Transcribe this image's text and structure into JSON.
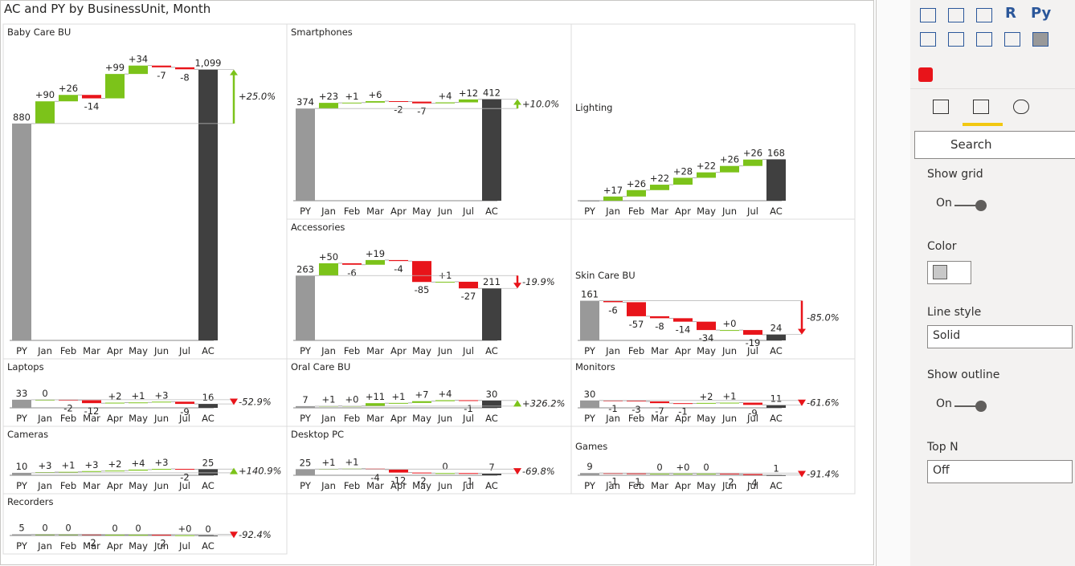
{
  "title": "AC and PY by BusinessUnit, Month",
  "colors": {
    "base": "#999999",
    "increase": "#7cc31a",
    "decrease": "#e8141a",
    "total": "#404040"
  },
  "chart_data": [
    {
      "type": "waterfall",
      "title": "Baby Care BU",
      "categories": [
        "PY",
        "Jan",
        "Feb",
        "Mar",
        "Apr",
        "May",
        "Jun",
        "Jul",
        "AC"
      ],
      "values": [
        880,
        90,
        26,
        -14,
        99,
        34,
        -7,
        -8,
        1099
      ],
      "value_labels": [
        "880",
        "+90",
        "+26",
        "-14",
        "+99",
        "+34",
        "-7",
        "-8",
        "1,099"
      ],
      "variance": {
        "value": 25.0,
        "label": "+25.0%"
      }
    },
    {
      "type": "waterfall",
      "title": "Smartphones",
      "categories": [
        "PY",
        "Jan",
        "Feb",
        "Mar",
        "Apr",
        "May",
        "Jun",
        "Jul",
        "AC"
      ],
      "values": [
        374,
        23,
        1,
        6,
        -2,
        -7,
        4,
        12,
        412
      ],
      "value_labels": [
        "374",
        "+23",
        "+1",
        "+6",
        "-2",
        "-7",
        "+4",
        "+12",
        "412"
      ],
      "variance": {
        "value": 10.0,
        "label": "+10.0%"
      }
    },
    {
      "type": "waterfall",
      "title": "Lighting",
      "categories": [
        "PY",
        "Jan",
        "Feb",
        "Mar",
        "Apr",
        "May",
        "Jun",
        "Jul",
        "AC"
      ],
      "values": [
        0,
        17,
        26,
        22,
        28,
        22,
        26,
        26,
        168
      ],
      "value_labels": [
        null,
        "+17",
        "+26",
        "+22",
        "+28",
        "+22",
        "+26",
        "+26",
        "168"
      ]
    },
    {
      "type": "waterfall",
      "title": "Accessories",
      "categories": [
        "PY",
        "Jan",
        "Feb",
        "Mar",
        "Apr",
        "May",
        "Jun",
        "Jul",
        "AC"
      ],
      "values": [
        263,
        50,
        -6,
        19,
        -4,
        -85,
        1,
        -27,
        211
      ],
      "value_labels": [
        "263",
        "+50",
        "-6",
        "+19",
        "-4",
        "-85",
        "+1",
        "-27",
        "211"
      ],
      "variance": {
        "value": -19.9,
        "label": "-19.9%"
      }
    },
    {
      "type": "waterfall",
      "title": "Skin Care BU",
      "categories": [
        "PY",
        "Jan",
        "Feb",
        "Mar",
        "Apr",
        "May",
        "Jun",
        "Jul",
        "AC"
      ],
      "values": [
        161,
        -6,
        -57,
        -8,
        -14,
        -34,
        0,
        -19,
        24
      ],
      "value_labels": [
        "161",
        "-6",
        "-57",
        "-8",
        "-14",
        "-34",
        "+0",
        "-19",
        "24"
      ],
      "variance": {
        "value": -85.0,
        "label": "-85.0%"
      }
    },
    {
      "type": "waterfall",
      "title": "Laptops",
      "categories": [
        "PY",
        "Jan",
        "Feb",
        "Mar",
        "Apr",
        "May",
        "Jun",
        "Jul",
        "AC"
      ],
      "values": [
        33,
        0,
        -2,
        -12,
        2,
        1,
        3,
        -9,
        16
      ],
      "value_labels": [
        "33",
        "0",
        "-2",
        "-12",
        "+2",
        "+1",
        "+3",
        "-9",
        "16"
      ],
      "variance": {
        "value": -52.9,
        "label": "-52.9%"
      }
    },
    {
      "type": "waterfall",
      "title": "Oral Care BU",
      "categories": [
        "PY",
        "Jan",
        "Feb",
        "Mar",
        "Apr",
        "May",
        "Jun",
        "Jul",
        "AC"
      ],
      "values": [
        7,
        1,
        0,
        11,
        1,
        7,
        4,
        -1,
        30
      ],
      "value_labels": [
        "7",
        "+1",
        "+0",
        "+11",
        "+1",
        "+7",
        "+4",
        "-1",
        "30"
      ],
      "variance": {
        "value": 326.2,
        "label": "+326.2%"
      }
    },
    {
      "type": "waterfall",
      "title": "Monitors",
      "categories": [
        "PY",
        "Jan",
        "Feb",
        "Mar",
        "Apr",
        "May",
        "Jun",
        "Jul",
        "AC"
      ],
      "values": [
        30,
        -1,
        -3,
        -7,
        -1,
        2,
        1,
        -9,
        11
      ],
      "value_labels": [
        "30",
        "-1",
        "-3",
        "-7",
        "-1",
        "+2",
        "+1",
        "-9",
        "11"
      ],
      "variance": {
        "value": -61.6,
        "label": "-61.6%"
      }
    },
    {
      "type": "waterfall",
      "title": "Cameras",
      "categories": [
        "PY",
        "Jan",
        "Feb",
        "Mar",
        "Apr",
        "May",
        "Jun",
        "Jul",
        "AC"
      ],
      "values": [
        10,
        3,
        1,
        3,
        2,
        4,
        3,
        -2,
        25
      ],
      "value_labels": [
        "10",
        "+3",
        "+1",
        "+3",
        "+2",
        "+4",
        "+3",
        "-2",
        "25"
      ],
      "variance": {
        "value": 140.9,
        "label": "+140.9%"
      }
    },
    {
      "type": "waterfall",
      "title": "Desktop PC",
      "categories": [
        "PY",
        "Jan",
        "Feb",
        "Mar",
        "Apr",
        "May",
        "Jun",
        "Jul",
        "AC"
      ],
      "values": [
        25,
        1,
        1,
        -4,
        -12,
        -2,
        0,
        -1,
        7
      ],
      "value_labels": [
        "25",
        "+1",
        "+1",
        "-4",
        "-12",
        "-2",
        "0",
        "-1",
        "7"
      ],
      "variance": {
        "value": -69.8,
        "label": "-69.8%"
      }
    },
    {
      "type": "waterfall",
      "title": "Games",
      "categories": [
        "PY",
        "Jan",
        "Feb",
        "Mar",
        "Apr",
        "May",
        "Jun",
        "Jul",
        "AC"
      ],
      "values": [
        9,
        -1,
        -1,
        0,
        0,
        0,
        -2,
        -4,
        1
      ],
      "value_labels": [
        "9",
        "-1",
        "-1",
        "0",
        "+0",
        "0",
        "-2",
        "-4",
        "1"
      ],
      "variance": {
        "value": -91.4,
        "label": "-91.4%"
      }
    },
    {
      "type": "waterfall",
      "title": "Recorders",
      "categories": [
        "PY",
        "Jan",
        "Feb",
        "Mar",
        "Apr",
        "May",
        "Jun",
        "Jul",
        "AC"
      ],
      "values": [
        5,
        0,
        0,
        -2,
        0,
        0,
        -2,
        0,
        0
      ],
      "value_labels": [
        "5",
        "0",
        "0",
        "-2",
        "0",
        "0",
        "-2",
        "+0",
        "0"
      ],
      "variance": {
        "value": -92.4,
        "label": "-92.4%"
      }
    }
  ],
  "pane": {
    "icon_labels": [
      "R",
      "Py"
    ],
    "search": "Search",
    "show_grid": {
      "label": "Show grid",
      "state": "On"
    },
    "color": {
      "label": "Color"
    },
    "line_style": {
      "label": "Line style",
      "value": "Solid"
    },
    "show_outline": {
      "label": "Show outline",
      "state": "On"
    },
    "top_n": {
      "label": "Top N",
      "value": "Off"
    }
  }
}
